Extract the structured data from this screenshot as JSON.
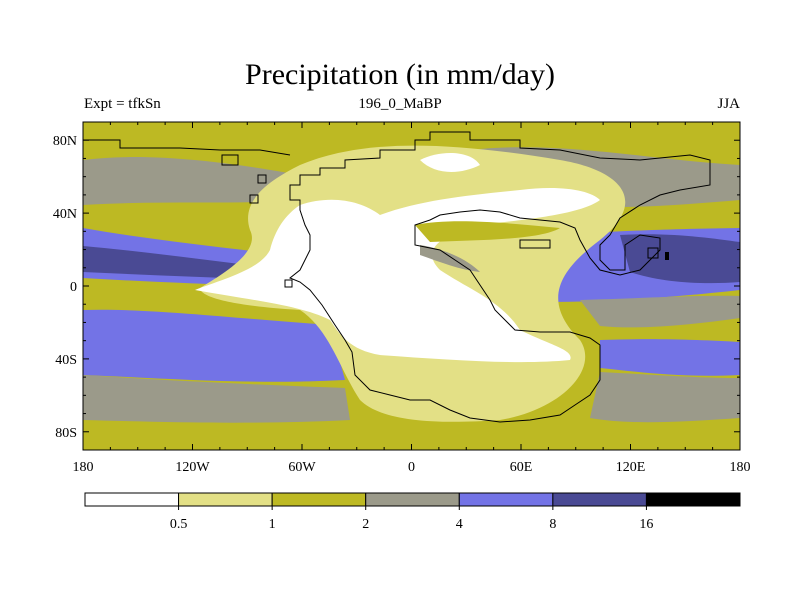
{
  "chart_data": {
    "type": "contour-map",
    "title": "Precipitation (in mm/day)",
    "subtitle_left": "Expt = tfkSn",
    "subtitle_center": "196_0_MaBP",
    "subtitle_right": "JJA",
    "x_range": [
      -180,
      180
    ],
    "y_range": [
      -90,
      90
    ],
    "x_ticks": [
      {
        "value": -180,
        "label": "180"
      },
      {
        "value": -120,
        "label": "120W"
      },
      {
        "value": -60,
        "label": "60W"
      },
      {
        "value": 0,
        "label": "0"
      },
      {
        "value": 60,
        "label": "60E"
      },
      {
        "value": 120,
        "label": "120E"
      },
      {
        "value": 180,
        "label": "180"
      }
    ],
    "y_ticks": [
      {
        "value": 80,
        "label": "80N"
      },
      {
        "value": 40,
        "label": "40N"
      },
      {
        "value": 0,
        "label": "0"
      },
      {
        "value": -40,
        "label": "40S"
      },
      {
        "value": -80,
        "label": "80S"
      }
    ],
    "levels": [
      "0.5",
      "1",
      "2",
      "4",
      "8",
      "16"
    ],
    "colors": [
      "#ffffff",
      "#e3e086",
      "#bdb923",
      "#9b9a8a",
      "#7373e6",
      "#4a4a94",
      "#000000"
    ]
  }
}
